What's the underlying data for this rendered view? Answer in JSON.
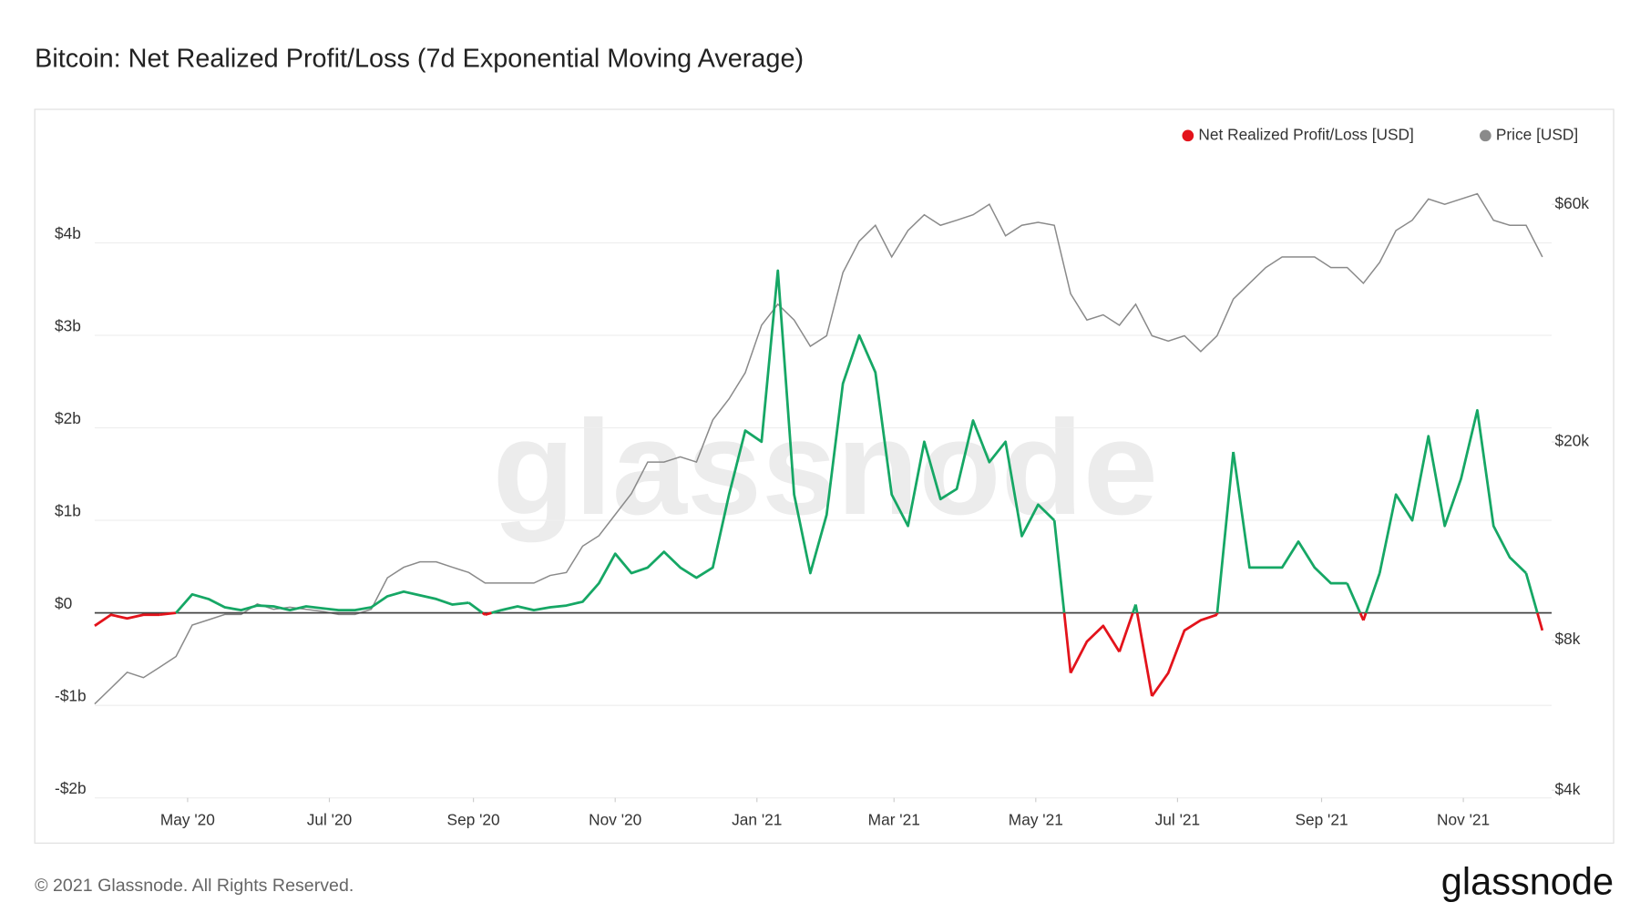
{
  "chart_data": {
    "type": "line",
    "title": "Bitcoin: Net Realized Profit/Loss (7d Exponential Moving Average)",
    "watermark": "glassnode",
    "footer": "© 2021 Glassnode. All Rights Reserved.",
    "logo": "glassnode",
    "legend": "top-right",
    "grid": true,
    "x": [
      "2020-03-22",
      "2020-03-29",
      "2020-04-05",
      "2020-04-12",
      "2020-04-19",
      "2020-04-26",
      "2020-05-03",
      "2020-05-10",
      "2020-05-17",
      "2020-05-24",
      "2020-05-31",
      "2020-06-07",
      "2020-06-14",
      "2020-06-21",
      "2020-06-28",
      "2020-07-05",
      "2020-07-12",
      "2020-07-19",
      "2020-07-26",
      "2020-08-02",
      "2020-08-09",
      "2020-08-16",
      "2020-08-23",
      "2020-08-30",
      "2020-09-06",
      "2020-09-13",
      "2020-09-20",
      "2020-09-27",
      "2020-10-04",
      "2020-10-11",
      "2020-10-18",
      "2020-10-25",
      "2020-11-01",
      "2020-11-08",
      "2020-11-15",
      "2020-11-22",
      "2020-11-29",
      "2020-12-06",
      "2020-12-13",
      "2020-12-20",
      "2020-12-27",
      "2021-01-03",
      "2021-01-10",
      "2021-01-17",
      "2021-01-24",
      "2021-01-31",
      "2021-02-07",
      "2021-02-14",
      "2021-02-21",
      "2021-02-28",
      "2021-03-07",
      "2021-03-14",
      "2021-03-21",
      "2021-03-28",
      "2021-04-04",
      "2021-04-11",
      "2021-04-18",
      "2021-04-25",
      "2021-05-02",
      "2021-05-09",
      "2021-05-16",
      "2021-05-23",
      "2021-05-30",
      "2021-06-06",
      "2021-06-13",
      "2021-06-20",
      "2021-06-27",
      "2021-07-04",
      "2021-07-11",
      "2021-07-18",
      "2021-07-25",
      "2021-08-01",
      "2021-08-08",
      "2021-08-15",
      "2021-08-22",
      "2021-08-29",
      "2021-09-05",
      "2021-09-12",
      "2021-09-19",
      "2021-09-26",
      "2021-10-03",
      "2021-10-10",
      "2021-10-17",
      "2021-10-24",
      "2021-10-31",
      "2021-11-07",
      "2021-11-14",
      "2021-11-21",
      "2021-11-28",
      "2021-12-05"
    ],
    "xlim": [
      "2020-03-22",
      "2021-12-09"
    ],
    "xticks": [
      {
        "value": "2020-05-01",
        "label": "May '20"
      },
      {
        "value": "2020-07-01",
        "label": "Jul '20"
      },
      {
        "value": "2020-09-01",
        "label": "Sep '20"
      },
      {
        "value": "2020-11-01",
        "label": "Nov '20"
      },
      {
        "value": "2021-01-01",
        "label": "Jan '21"
      },
      {
        "value": "2021-03-01",
        "label": "Mar '21"
      },
      {
        "value": "2021-05-01",
        "label": "May '21"
      },
      {
        "value": "2021-07-01",
        "label": "Jul '21"
      },
      {
        "value": "2021-09-01",
        "label": "Sep '21"
      },
      {
        "value": "2021-11-01",
        "label": "Nov '21"
      }
    ],
    "ylim": [
      -2,
      5
    ],
    "yticks": [
      {
        "value": -2,
        "label": "-$2b"
      },
      {
        "value": -1,
        "label": "-$1b"
      },
      {
        "value": 0,
        "label": "$0"
      },
      {
        "value": 1,
        "label": "$1b"
      },
      {
        "value": 2,
        "label": "$2b"
      },
      {
        "value": 3,
        "label": "$3b"
      },
      {
        "value": 4,
        "label": "$4b"
      }
    ],
    "y2lim": [
      3860,
      77000
    ],
    "y2scale": "log",
    "y2ticks": [
      {
        "value": 4000,
        "label": "$4k"
      },
      {
        "value": 8000,
        "label": "$8k"
      },
      {
        "value": 20000,
        "label": "$20k"
      },
      {
        "value": 60000,
        "label": "$60k"
      }
    ],
    "series": [
      {
        "name": "Net Realized Profit/Loss [USD]",
        "color": "#e3131b",
        "positive_color": "#16a765",
        "values": [
          -0.14,
          -0.02,
          -0.06,
          -0.02,
          -0.02,
          0,
          0.2,
          0.15,
          0.06,
          0.03,
          0.08,
          0.07,
          0.03,
          0.07,
          0.05,
          0.03,
          0.03,
          0.06,
          0.18,
          0.23,
          0.19,
          0.15,
          0.09,
          0.11,
          -0.02,
          0.03,
          0.07,
          0.03,
          0.06,
          0.08,
          0.12,
          0.32,
          0.64,
          0.43,
          0.49,
          0.66,
          0.49,
          0.38,
          0.49,
          1.28,
          1.97,
          1.85,
          3.7,
          1.28,
          0.43,
          1.06,
          2.48,
          3.0,
          2.6,
          1.28,
          0.94,
          1.85,
          1.23,
          1.34,
          2.08,
          1.63,
          1.85,
          0.83,
          1.17,
          1.0,
          -0.65,
          -0.31,
          -0.14,
          -0.42,
          0.09,
          -0.9,
          -0.65,
          -0.19,
          -0.08,
          -0.02,
          1.74,
          0.49,
          0.49,
          0.49,
          0.77,
          0.49,
          0.32,
          0.32,
          -0.08,
          0.43,
          1.28,
          1.0,
          1.91,
          0.94,
          1.45,
          2.19,
          0.94,
          0.6,
          0.43,
          -0.19
        ]
      },
      {
        "name": "Price [USD]",
        "color": "#8a8a8a",
        "axis": "y2",
        "values": [
          5960,
          6410,
          6900,
          6730,
          7060,
          7420,
          8580,
          8790,
          9010,
          9010,
          9460,
          9230,
          9320,
          9230,
          9140,
          9010,
          9010,
          9230,
          10680,
          11210,
          11490,
          11490,
          11210,
          10940,
          10420,
          10420,
          10420,
          10420,
          10790,
          10940,
          12360,
          12970,
          14300,
          15760,
          18230,
          18230,
          18670,
          18230,
          22140,
          24410,
          27560,
          34300,
          37800,
          35150,
          31130,
          32680,
          43760,
          50590,
          54450,
          47050,
          53150,
          57170,
          54450,
          55730,
          57170,
          60000,
          51870,
          54450,
          55200,
          54450,
          39690,
          35150,
          36000,
          34300,
          37800,
          32680,
          31890,
          32680,
          30380,
          32680,
          38720,
          41650,
          44800,
          47050,
          47050,
          47050,
          44800,
          44800,
          41650,
          45880,
          53150,
          55730,
          61480,
          60000,
          61480,
          63000,
          55730,
          54450,
          54450,
          47050
        ]
      }
    ]
  }
}
